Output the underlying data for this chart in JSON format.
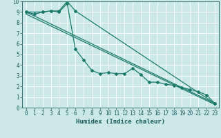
{
  "xlabel": "Humidex (Indice chaleur)",
  "xlim": [
    -0.5,
    23.5
  ],
  "ylim": [
    0,
    10
  ],
  "xticks": [
    0,
    1,
    2,
    3,
    4,
    5,
    6,
    7,
    8,
    9,
    10,
    11,
    12,
    13,
    14,
    15,
    16,
    17,
    18,
    19,
    20,
    21,
    22,
    23
  ],
  "yticks": [
    0,
    1,
    2,
    3,
    4,
    5,
    6,
    7,
    8,
    9,
    10
  ],
  "background_color": "#cce8e8",
  "grid_color": "#b0d4d4",
  "line_color": "#1a7a6a",
  "line1_x": [
    0,
    1,
    2,
    3,
    4,
    5,
    6,
    7,
    8,
    9,
    10,
    11,
    12,
    13,
    14,
    15,
    16,
    17,
    18,
    19,
    20,
    21,
    22,
    23
  ],
  "line1_y": [
    9.0,
    8.8,
    9.0,
    9.1,
    9.0,
    9.8,
    5.5,
    4.5,
    3.5,
    3.2,
    3.3,
    3.2,
    3.2,
    3.7,
    3.1,
    2.4,
    2.4,
    2.2,
    2.1,
    1.9,
    1.7,
    1.5,
    1.2,
    0.4
  ],
  "line2_x": [
    0,
    2,
    3,
    4,
    5,
    6,
    23
  ],
  "line2_y": [
    9.0,
    9.0,
    9.1,
    9.1,
    10.0,
    9.1,
    0.4
  ],
  "line3_x": [
    0,
    23
  ],
  "line3_y": [
    9.0,
    0.4
  ],
  "line4_x": [
    0,
    23
  ],
  "line4_y": [
    8.8,
    0.3
  ],
  "marker": "D",
  "marker_size": 2.0,
  "linewidth": 0.9,
  "font_color": "#1a5a5a",
  "xlabel_fontsize": 6.5,
  "tick_fontsize": 5.5
}
